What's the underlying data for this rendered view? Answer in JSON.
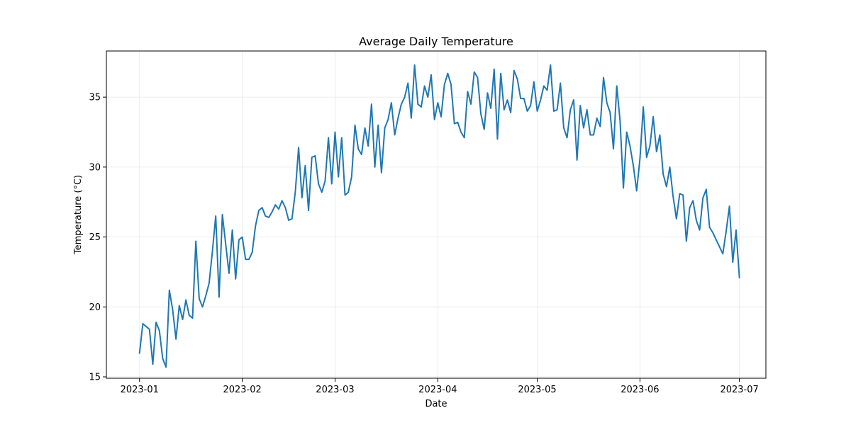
{
  "chart_data": {
    "type": "line",
    "title": "Average Daily Temperature",
    "xlabel": "Date",
    "ylabel": "Temperature (°C)",
    "grid": true,
    "line_color": "#1f77b4",
    "x_ticks": [
      "2023-01",
      "2023-02",
      "2023-03",
      "2023-04",
      "2023-05",
      "2023-06",
      "2023-07"
    ],
    "y_ticks": [
      15,
      20,
      25,
      30,
      35
    ],
    "ylim": [
      14.9,
      38.3
    ],
    "xlim": [
      "2022-12-22",
      "2023-07-09"
    ],
    "series": [
      {
        "x_start": "2023-01-01",
        "x_end": "2023-06-30",
        "values": [
          16.7,
          18.8,
          18.6,
          18.4,
          15.9,
          18.9,
          18.3,
          16.3,
          15.7,
          21.2,
          19.8,
          17.7,
          20.1,
          19.1,
          20.5,
          19.4,
          19.2,
          24.7,
          20.6,
          20.0,
          20.8,
          21.7,
          24.0,
          26.5,
          20.7,
          26.6,
          24.5,
          22.4,
          25.5,
          22.0,
          24.8,
          25.0,
          23.4,
          23.4,
          23.9,
          25.8,
          26.9,
          27.1,
          26.5,
          26.4,
          26.8,
          27.3,
          27.0,
          27.6,
          27.1,
          26.2,
          26.3,
          28.2,
          31.4,
          27.8,
          30.1,
          26.9,
          30.7,
          30.8,
          28.8,
          28.2,
          29.0,
          32.1,
          28.8,
          32.5,
          29.3,
          32.1,
          28.0,
          28.2,
          29.3,
          33.0,
          31.3,
          30.9,
          32.8,
          31.5,
          34.5,
          30.0,
          33.0,
          29.6,
          32.8,
          33.4,
          34.6,
          32.3,
          33.5,
          34.5,
          35.0,
          36.0,
          33.5,
          37.3,
          34.5,
          34.3,
          35.8,
          35.0,
          36.6,
          33.4,
          34.6,
          33.6,
          35.9,
          36.7,
          35.9,
          33.1,
          33.2,
          32.5,
          32.1,
          35.4,
          34.5,
          36.8,
          36.4,
          33.8,
          32.7,
          35.3,
          34.2,
          37.0,
          32.0,
          36.7,
          34.1,
          34.8,
          33.9,
          36.9,
          36.3,
          34.9,
          34.9,
          34.0,
          34.4,
          36.1,
          34.0,
          34.8,
          35.8,
          35.5,
          37.3,
          34.0,
          34.1,
          36.0,
          32.8,
          32.1,
          34.1,
          34.8,
          30.5,
          34.4,
          32.8,
          34.1,
          32.3,
          32.3,
          33.5,
          32.9,
          36.4,
          34.6,
          33.9,
          31.3,
          35.8,
          33.3,
          28.5,
          32.5,
          31.5,
          30.1,
          28.3,
          30.6,
          34.3,
          30.7,
          31.5,
          33.6,
          31.1,
          32.3,
          29.5,
          28.6,
          30.0,
          27.9,
          26.3,
          28.1,
          28.0,
          24.7,
          27.1,
          27.6,
          26.2,
          25.5,
          27.8,
          28.4,
          25.7,
          25.3,
          24.8,
          24.3,
          23.8,
          25.4,
          27.2,
          23.2,
          25.5,
          22.1
        ]
      }
    ]
  }
}
